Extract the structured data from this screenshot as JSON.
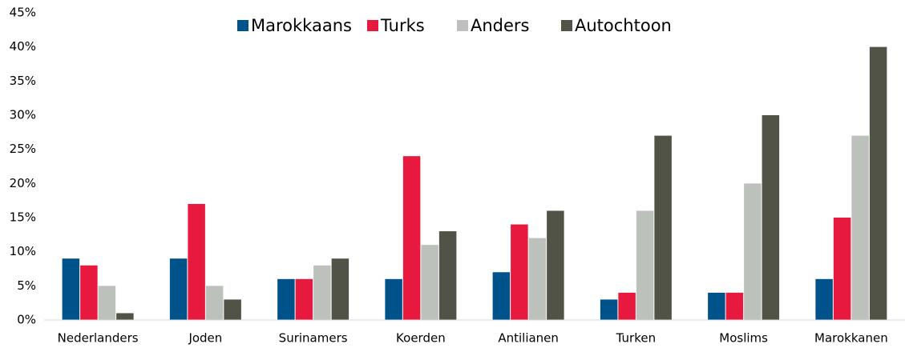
{
  "chart_data": {
    "type": "bar",
    "categories": [
      "Nederlanders",
      "Joden",
      "Surinamers",
      "Koerden",
      "Antilianen",
      "Turken",
      "Moslims",
      "Marokkanen"
    ],
    "series": [
      {
        "name": "Marokkaans",
        "color": "#00538a",
        "values": [
          9,
          9,
          6,
          6,
          7,
          3,
          4,
          6
        ]
      },
      {
        "name": "Turks",
        "color": "#e8193f",
        "values": [
          8,
          17,
          6,
          24,
          14,
          4,
          4,
          15
        ]
      },
      {
        "name": "Anders",
        "color": "#bdc1bc",
        "values": [
          5,
          5,
          8,
          11,
          12,
          16,
          20,
          27
        ]
      },
      {
        "name": "Autochtoon",
        "color": "#525347",
        "values": [
          1,
          3,
          9,
          13,
          16,
          27,
          30,
          40
        ]
      }
    ],
    "ylim": [
      0,
      45
    ],
    "yticks": [
      {
        "value": 0,
        "label": "0%"
      },
      {
        "value": 5,
        "label": "5%"
      },
      {
        "value": 10,
        "label": "10%"
      },
      {
        "value": 15,
        "label": "15%"
      },
      {
        "value": 20,
        "label": "20%"
      },
      {
        "value": 25,
        "label": "25%"
      },
      {
        "value": 30,
        "label": "30%"
      },
      {
        "value": 35,
        "label": "35%"
      },
      {
        "value": 40,
        "label": "40%"
      },
      {
        "value": 45,
        "label": "45%"
      }
    ],
    "grid": false,
    "legend": "top"
  }
}
